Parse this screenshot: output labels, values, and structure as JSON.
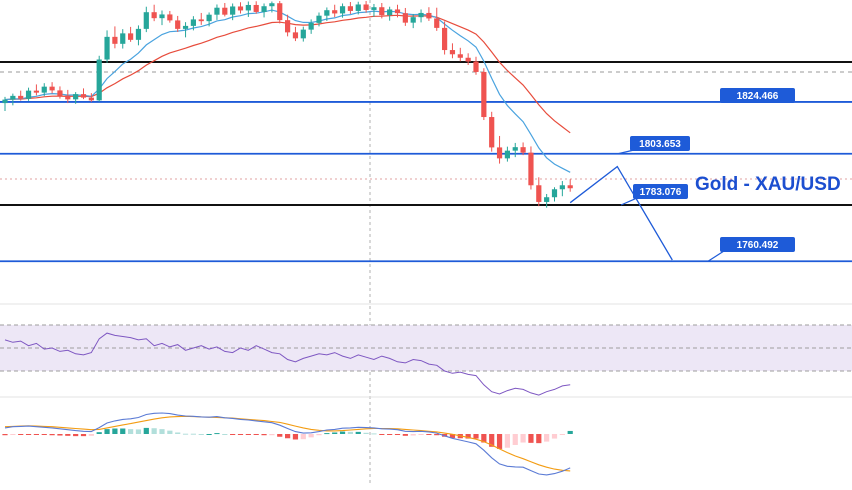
{
  "chart_data": {
    "type": "candlestick",
    "title": "Gold - XAU/USD",
    "levels": [
      {
        "value": 1824.466,
        "label": "1824.466",
        "style": "blue"
      },
      {
        "value": 1803.653,
        "label": "1803.653",
        "style": "blue"
      },
      {
        "value": 1783.076,
        "label": "1783.076",
        "style": "black"
      },
      {
        "value": 1760.492,
        "label": "1760.492",
        "style": "blue"
      }
    ],
    "extra_black_level": 1840.5,
    "ylim": [
      1750,
      1865
    ],
    "candles": [
      [
        1824.0,
        1826.5,
        1820.8,
        1825.4
      ],
      [
        1825.4,
        1827.8,
        1823.1,
        1826.9
      ],
      [
        1826.9,
        1829.0,
        1825.0,
        1825.7
      ],
      [
        1825.7,
        1830.2,
        1824.9,
        1829.0
      ],
      [
        1829.0,
        1831.5,
        1827.1,
        1828.2
      ],
      [
        1828.2,
        1832.0,
        1826.8,
        1830.6
      ],
      [
        1830.6,
        1832.4,
        1827.9,
        1829.1
      ],
      [
        1829.1,
        1830.7,
        1825.8,
        1827.0
      ],
      [
        1827.0,
        1829.3,
        1824.0,
        1825.5
      ],
      [
        1825.5,
        1828.4,
        1823.7,
        1827.6
      ],
      [
        1827.6,
        1829.9,
        1825.6,
        1826.2
      ],
      [
        1826.2,
        1828.0,
        1824.5,
        1825.1
      ],
      [
        1825.1,
        1843.0,
        1824.6,
        1841.5
      ],
      [
        1841.5,
        1853.2,
        1840.2,
        1850.6
      ],
      [
        1850.6,
        1854.8,
        1846.0,
        1847.8
      ],
      [
        1847.8,
        1853.7,
        1845.9,
        1852.0
      ],
      [
        1852.0,
        1854.6,
        1848.6,
        1849.4
      ],
      [
        1849.4,
        1855.2,
        1847.2,
        1853.8
      ],
      [
        1853.8,
        1862.7,
        1852.5,
        1860.5
      ],
      [
        1860.5,
        1863.5,
        1856.9,
        1858.1
      ],
      [
        1858.1,
        1861.2,
        1855.3,
        1859.6
      ],
      [
        1859.6,
        1861.0,
        1856.3,
        1857.2
      ],
      [
        1857.2,
        1859.0,
        1852.6,
        1853.8
      ],
      [
        1853.8,
        1856.5,
        1850.4,
        1855.0
      ],
      [
        1855.0,
        1858.9,
        1853.2,
        1857.6
      ],
      [
        1857.6,
        1860.2,
        1855.4,
        1856.9
      ],
      [
        1856.9,
        1860.4,
        1854.8,
        1859.5
      ],
      [
        1859.5,
        1863.6,
        1857.4,
        1862.3
      ],
      [
        1862.3,
        1864.2,
        1858.8,
        1859.5
      ],
      [
        1859.5,
        1864.0,
        1857.3,
        1862.8
      ],
      [
        1862.8,
        1864.5,
        1860.0,
        1861.2
      ],
      [
        1861.2,
        1864.8,
        1858.6,
        1863.4
      ],
      [
        1863.4,
        1864.9,
        1859.9,
        1860.6
      ],
      [
        1860.6,
        1864.0,
        1858.4,
        1862.9
      ],
      [
        1862.9,
        1864.8,
        1860.4,
        1864.1
      ],
      [
        1864.1,
        1865.0,
        1856.0,
        1857.3
      ],
      [
        1857.3,
        1859.5,
        1850.8,
        1852.4
      ],
      [
        1852.4,
        1854.6,
        1848.9,
        1850.0
      ],
      [
        1850.0,
        1854.7,
        1848.7,
        1853.5
      ],
      [
        1853.5,
        1857.6,
        1851.8,
        1856.2
      ],
      [
        1856.2,
        1860.4,
        1854.8,
        1859.1
      ],
      [
        1859.1,
        1862.4,
        1857.0,
        1861.3
      ],
      [
        1861.3,
        1863.5,
        1858.5,
        1860.0
      ],
      [
        1860.0,
        1864.0,
        1858.3,
        1862.9
      ],
      [
        1862.9,
        1864.6,
        1859.8,
        1861.0
      ],
      [
        1861.0,
        1864.7,
        1859.6,
        1863.6
      ],
      [
        1863.6,
        1865.0,
        1860.3,
        1861.4
      ],
      [
        1861.4,
        1863.8,
        1858.6,
        1862.5
      ],
      [
        1862.5,
        1864.2,
        1858.0,
        1859.3
      ],
      [
        1859.3,
        1862.7,
        1857.1,
        1861.6
      ],
      [
        1861.6,
        1863.5,
        1858.4,
        1860.1
      ],
      [
        1860.1,
        1862.2,
        1855.0,
        1856.3
      ],
      [
        1856.3,
        1859.8,
        1854.1,
        1858.5
      ],
      [
        1858.5,
        1861.6,
        1856.4,
        1860.2
      ],
      [
        1860.2,
        1862.5,
        1857.0,
        1858.0
      ],
      [
        1858.0,
        1862.3,
        1853.0,
        1854.2
      ],
      [
        1854.2,
        1856.8,
        1843.5,
        1845.3
      ],
      [
        1845.3,
        1848.0,
        1842.0,
        1843.6
      ],
      [
        1843.6,
        1846.2,
        1840.8,
        1842.2
      ],
      [
        1842.2,
        1844.0,
        1839.3,
        1840.7
      ],
      [
        1840.7,
        1842.6,
        1835.4,
        1836.5
      ],
      [
        1836.5,
        1838.0,
        1817.2,
        1818.4
      ],
      [
        1818.4,
        1820.5,
        1804.5,
        1806.2
      ],
      [
        1806.2,
        1810.8,
        1799.7,
        1801.8
      ],
      [
        1801.8,
        1806.5,
        1800.5,
        1804.9
      ],
      [
        1804.9,
        1808.0,
        1802.3,
        1806.3
      ],
      [
        1806.3,
        1808.2,
        1803.1,
        1804.1
      ],
      [
        1804.1,
        1806.6,
        1789.3,
        1791.0
      ],
      [
        1791.0,
        1794.2,
        1782.6,
        1784.3
      ],
      [
        1784.3,
        1787.5,
        1782.0,
        1786.2
      ],
      [
        1786.2,
        1790.2,
        1784.5,
        1789.4
      ],
      [
        1789.4,
        1792.7,
        1786.6,
        1791.0
      ],
      [
        1791.0,
        1793.4,
        1788.4,
        1789.8
      ]
    ],
    "projection": [
      {
        "index": 72,
        "value": 1784.0
      },
      {
        "index": 78,
        "value": 1798.5
      },
      {
        "index": 85,
        "value": 1761.0
      }
    ],
    "colors": {
      "up": "#26a69a",
      "down": "#ef5350",
      "fast_ma": "#4aa3df",
      "slow_ma": "#e74c3c",
      "level_blue": "#1e5bd8",
      "level_black": "#111111",
      "rsi_line": "#7e57c2",
      "rsi_band": "#ede7f6",
      "macd_line": "#5b7bd5",
      "signal_line": "#f39c12"
    },
    "rsi": [
      57,
      55,
      56,
      52,
      54,
      49,
      50,
      47,
      48,
      45,
      44,
      46,
      58,
      63,
      61,
      60,
      59,
      57,
      58,
      52,
      54,
      51,
      53,
      48,
      50,
      52,
      49,
      51,
      47,
      46,
      50,
      48,
      52,
      49,
      46,
      45,
      40,
      38,
      41,
      43,
      45,
      44,
      46,
      43,
      41,
      44,
      42,
      40,
      43,
      41,
      38,
      37,
      40,
      39,
      36,
      35,
      30,
      28,
      29,
      27,
      26,
      18,
      12,
      10,
      13,
      15,
      14,
      11,
      9,
      12,
      14,
      17,
      18
    ],
    "rsi_bands": [
      70,
      50,
      30
    ],
    "macd": [
      2.0,
      2.4,
      2.5,
      2.6,
      2.4,
      2.2,
      2.0,
      1.7,
      1.4,
      1.1,
      0.9,
      0.8,
      2.1,
      3.6,
      4.3,
      4.8,
      5.0,
      5.4,
      6.4,
      6.8,
      6.9,
      6.7,
      6.2,
      5.9,
      5.8,
      5.6,
      5.5,
      5.7,
      5.3,
      5.1,
      4.8,
      4.6,
      4.3,
      4.0,
      3.7,
      2.9,
      1.8,
      0.8,
      0.3,
      0.4,
      0.8,
      1.3,
      1.5,
      1.9,
      2.0,
      2.2,
      2.1,
      2.0,
      1.7,
      1.6,
      1.4,
      0.9,
      0.8,
      0.9,
      0.7,
      0.3,
      -0.6,
      -1.4,
      -2.0,
      -2.6,
      -3.2,
      -5.3,
      -7.8,
      -9.8,
      -10.6,
      -10.8,
      -10.9,
      -12.0,
      -13.1,
      -13.4,
      -13.0,
      -12.2,
      -11.1
    ],
    "signal": [
      2.4,
      2.5,
      2.6,
      2.7,
      2.6,
      2.5,
      2.4,
      2.2,
      2.0,
      1.8,
      1.6,
      1.4,
      1.5,
      2.0,
      2.5,
      3.0,
      3.4,
      3.9,
      4.4,
      4.9,
      5.3,
      5.6,
      5.7,
      5.8,
      5.7,
      5.6,
      5.5,
      5.4,
      5.3,
      5.2,
      5.0,
      4.8,
      4.6,
      4.4,
      4.1,
      3.8,
      3.2,
      2.6,
      2.0,
      1.5,
      1.2,
      1.0,
      1.0,
      1.1,
      1.3,
      1.5,
      1.7,
      1.8,
      1.8,
      1.8,
      1.7,
      1.5,
      1.3,
      1.1,
      0.9,
      0.7,
      0.3,
      -0.1,
      -0.6,
      -1.1,
      -1.7,
      -2.5,
      -3.6,
      -4.9,
      -6.1,
      -7.2,
      -8.1,
      -9.1,
      -10.1,
      -10.9,
      -11.5,
      -11.9,
      -12.1
    ]
  }
}
